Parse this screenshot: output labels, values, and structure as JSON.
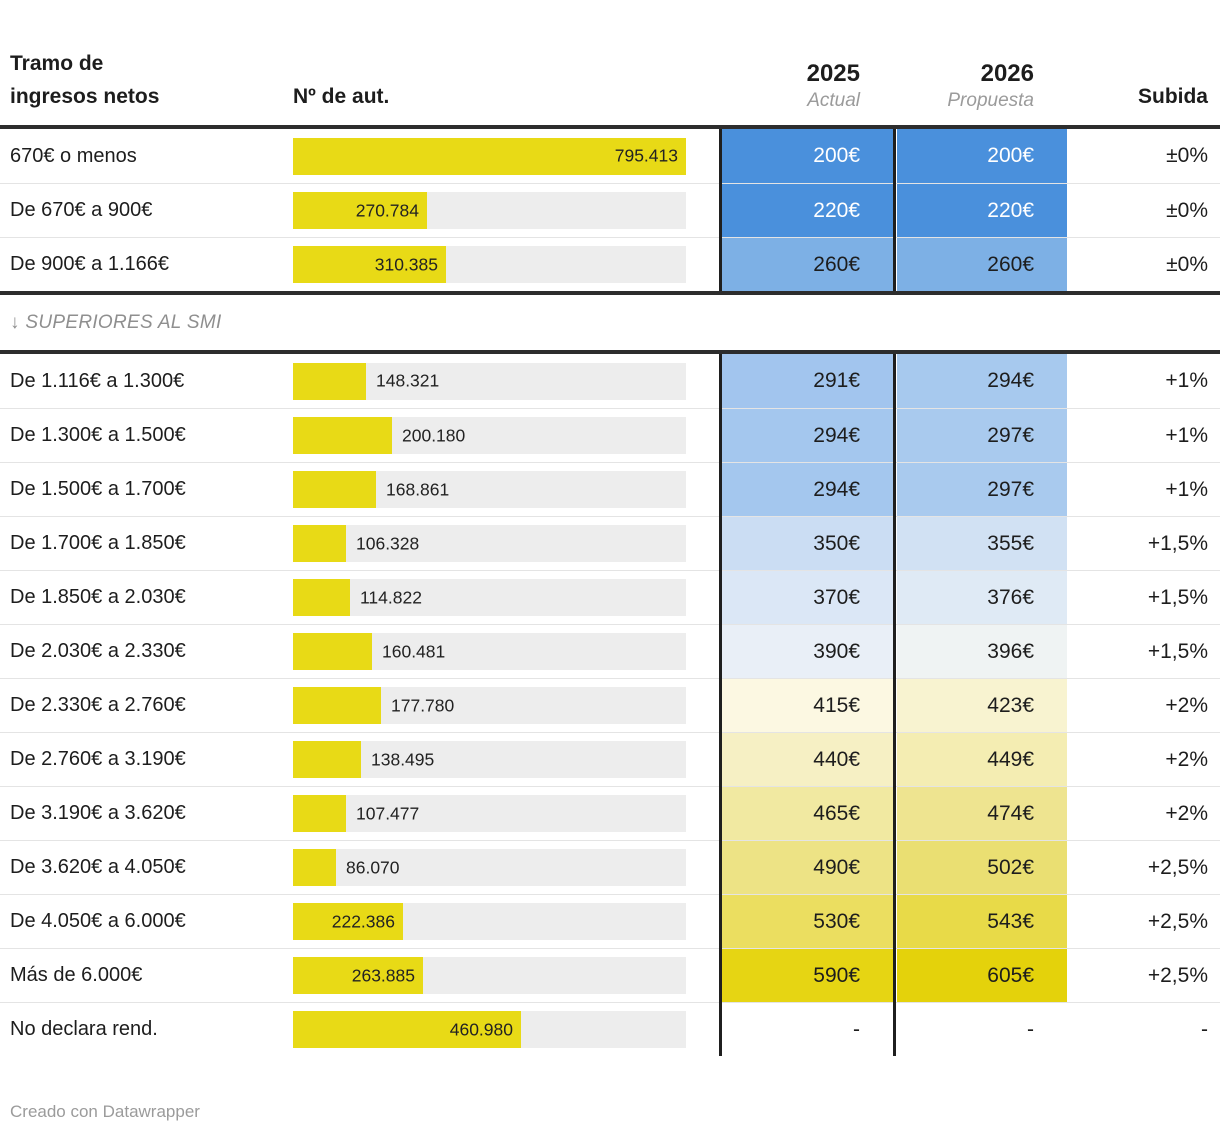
{
  "header": {
    "col_bracket": {
      "line1": "Tramo de",
      "line2": "ingresos netos"
    },
    "col_count": "Nº de aut.",
    "col_2025": {
      "year": "2025",
      "sub": "Actual"
    },
    "col_2026": {
      "year": "2026",
      "sub": "Propuesta"
    },
    "col_subida": "Subida"
  },
  "separator": {
    "label": "↓ SUPERIORES AL SMI"
  },
  "footer": {
    "credit": "Creado con Datawrapper"
  },
  "colors": {
    "bar_yellow": "#e8da16",
    "bar_track": "#ededed",
    "rule_dark": "#2d2d2d",
    "strong_blue": "#4a90dc",
    "bright_yellow": "#e6d513"
  },
  "chart_data": {
    "type": "table",
    "columns": [
      "Tramo de ingresos netos",
      "Nº de aut.",
      "2025 Actual",
      "2026 Propuesta",
      "Subida"
    ],
    "bar_max": 795413,
    "rows": [
      {
        "section": 1,
        "bracket": "670€ o menos",
        "count": 795413,
        "count_label": "795.413",
        "q2025": "200€",
        "q2026": "200€",
        "subida": "±0%",
        "bg2025": "#4a90dc",
        "bg2026": "#4a90dc",
        "text": "#ffffff",
        "label_pos": "in"
      },
      {
        "section": 1,
        "bracket": "De 670€ a 900€",
        "count": 270784,
        "count_label": "270.784",
        "q2025": "220€",
        "q2026": "220€",
        "subida": "±0%",
        "bg2025": "#4a90dc",
        "bg2026": "#4a90dc",
        "text": "#ffffff",
        "label_pos": "in"
      },
      {
        "section": 1,
        "bracket": "De 900€ a 1.166€",
        "count": 310385,
        "count_label": "310.385",
        "q2025": "260€",
        "q2026": "260€",
        "subida": "±0%",
        "bg2025": "#7db0e5",
        "bg2026": "#7db0e5",
        "text": "#1d1d1d",
        "label_pos": "in"
      },
      {
        "section": 2,
        "bracket": "De 1.116€ a 1.300€",
        "count": 148321,
        "count_label": "148.321",
        "q2025": "291€",
        "q2026": "294€",
        "subida": "+1%",
        "bg2025": "#a2c5ee",
        "bg2026": "#a7c9ee",
        "text": "#1d1d1d",
        "label_pos": "out"
      },
      {
        "section": 2,
        "bracket": "De 1.300€ a 1.500€",
        "count": 200180,
        "count_label": "200.180",
        "q2025": "294€",
        "q2026": "297€",
        "subida": "+1%",
        "bg2025": "#a4c7ee",
        "bg2026": "#a9caee",
        "text": "#1d1d1d",
        "label_pos": "out"
      },
      {
        "section": 2,
        "bracket": "De 1.500€ a 1.700€",
        "count": 168861,
        "count_label": "168.861",
        "q2025": "294€",
        "q2026": "297€",
        "subida": "+1%",
        "bg2025": "#a4c7ee",
        "bg2026": "#a9caee",
        "text": "#1d1d1d",
        "label_pos": "out"
      },
      {
        "section": 2,
        "bracket": "De 1.700€ a 1.850€",
        "count": 106328,
        "count_label": "106.328",
        "q2025": "350€",
        "q2026": "355€",
        "subida": "+1,5%",
        "bg2025": "#cbddf3",
        "bg2026": "#d1e1f3",
        "text": "#1d1d1d",
        "label_pos": "out"
      },
      {
        "section": 2,
        "bracket": "De 1.850€ a 2.030€",
        "count": 114822,
        "count_label": "114.822",
        "q2025": "370€",
        "q2026": "376€",
        "subida": "+1,5%",
        "bg2025": "#dbe7f6",
        "bg2026": "#dfeaf5",
        "text": "#1d1d1d",
        "label_pos": "out"
      },
      {
        "section": 2,
        "bracket": "De 2.030€ a 2.330€",
        "count": 160481,
        "count_label": "160.481",
        "q2025": "390€",
        "q2026": "396€",
        "subida": "+1,5%",
        "bg2025": "#e9eff7",
        "bg2026": "#eff3f3",
        "text": "#1d1d1d",
        "label_pos": "out"
      },
      {
        "section": 2,
        "bracket": "De 2.330€ a 2.760€",
        "count": 177780,
        "count_label": "177.780",
        "q2025": "415€",
        "q2026": "423€",
        "subida": "+2%",
        "bg2025": "#fcf8e2",
        "bg2026": "#f8f3d0",
        "text": "#1d1d1d",
        "label_pos": "out"
      },
      {
        "section": 2,
        "bracket": "De 2.760€ a 3.190€",
        "count": 138495,
        "count_label": "138.495",
        "q2025": "440€",
        "q2026": "449€",
        "subida": "+2%",
        "bg2025": "#f6f0c4",
        "bg2026": "#f4edb2",
        "text": "#1d1d1d",
        "label_pos": "out"
      },
      {
        "section": 2,
        "bracket": "De 3.190€ a 3.620€",
        "count": 107477,
        "count_label": "107.477",
        "q2025": "465€",
        "q2026": "474€",
        "subida": "+2%",
        "bg2025": "#f1e9a1",
        "bg2026": "#eee490",
        "text": "#1d1d1d",
        "label_pos": "out"
      },
      {
        "section": 2,
        "bracket": "De 3.620€ a 4.050€",
        "count": 86070,
        "count_label": "86.070",
        "q2025": "490€",
        "q2026": "502€",
        "subida": "+2,5%",
        "bg2025": "#ede385",
        "bg2026": "#eadf72",
        "text": "#1d1d1d",
        "label_pos": "out"
      },
      {
        "section": 2,
        "bracket": "De 4.050€ a 6.000€",
        "count": 222386,
        "count_label": "222.386",
        "q2025": "530€",
        "q2026": "543€",
        "subida": "+2,5%",
        "bg2025": "#ebde60",
        "bg2026": "#e8da48",
        "text": "#1d1d1d",
        "label_pos": "in"
      },
      {
        "section": 2,
        "bracket": "Más de 6.000€",
        "count": 263885,
        "count_label": "263.885",
        "q2025": "590€",
        "q2026": "605€",
        "subida": "+2,5%",
        "bg2025": "#e6d513",
        "bg2026": "#e4d20b",
        "text": "#1d1d1d",
        "label_pos": "in"
      },
      {
        "section": 2,
        "bracket": "No declara rend.",
        "count": 460980,
        "count_label": "460.980",
        "q2025": "-",
        "q2026": "-",
        "subida": "-",
        "bg2025": "#ffffff",
        "bg2026": "#ffffff",
        "text": "#1d1d1d",
        "label_pos": "in"
      }
    ]
  }
}
